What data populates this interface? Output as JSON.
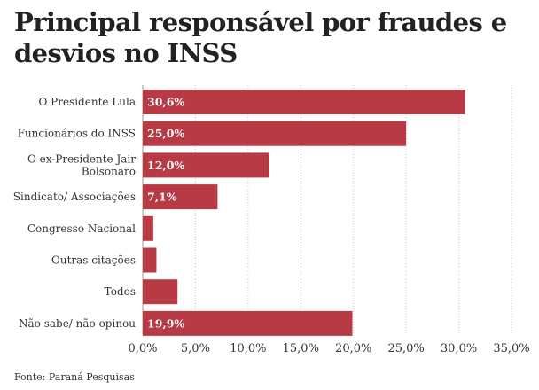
{
  "chart_data": {
    "type": "bar",
    "orientation": "horizontal",
    "title": "Principal responsável por fraudes e desvios no INSS",
    "categories": [
      "O Presidente Lula",
      "Funcionários do INSS",
      "O ex-Presidente Jair Bolsonaro",
      "Sindicato/ Associações",
      "Congresso Nacional",
      "Outras citações",
      "Todos",
      "Não sabe/ não opinou"
    ],
    "category_lines": [
      [
        "O Presidente Lula"
      ],
      [
        "Funcionários do INSS"
      ],
      [
        "O ex-Presidente Jair",
        "Bolsonaro"
      ],
      [
        "Sindicato/ Associações"
      ],
      [
        "Congresso Nacional"
      ],
      [
        "Outras citações"
      ],
      [
        "Todos"
      ],
      [
        "Não sabe/ não opinou"
      ]
    ],
    "values": [
      30.6,
      25.0,
      12.0,
      7.1,
      1.0,
      1.3,
      3.3,
      19.9
    ],
    "data_labels": [
      "30,6%",
      "25,0%",
      "12,0%",
      "7,1%",
      "",
      "",
      "",
      "19,9%"
    ],
    "xlim": [
      0,
      35
    ],
    "x_ticks": [
      0,
      5,
      10,
      15,
      20,
      25,
      30,
      35
    ],
    "x_tick_labels": [
      "0,0%",
      "5,0%",
      "10,0%",
      "15,0%",
      "20,0%",
      "25,0%",
      "30,0%",
      "35,0%"
    ],
    "xlabel": "",
    "ylabel": "",
    "grid": "vertical dotted",
    "legend": "none",
    "bar_color": "#b73a44",
    "source": "Fonte: Paraná Pesquisas"
  }
}
